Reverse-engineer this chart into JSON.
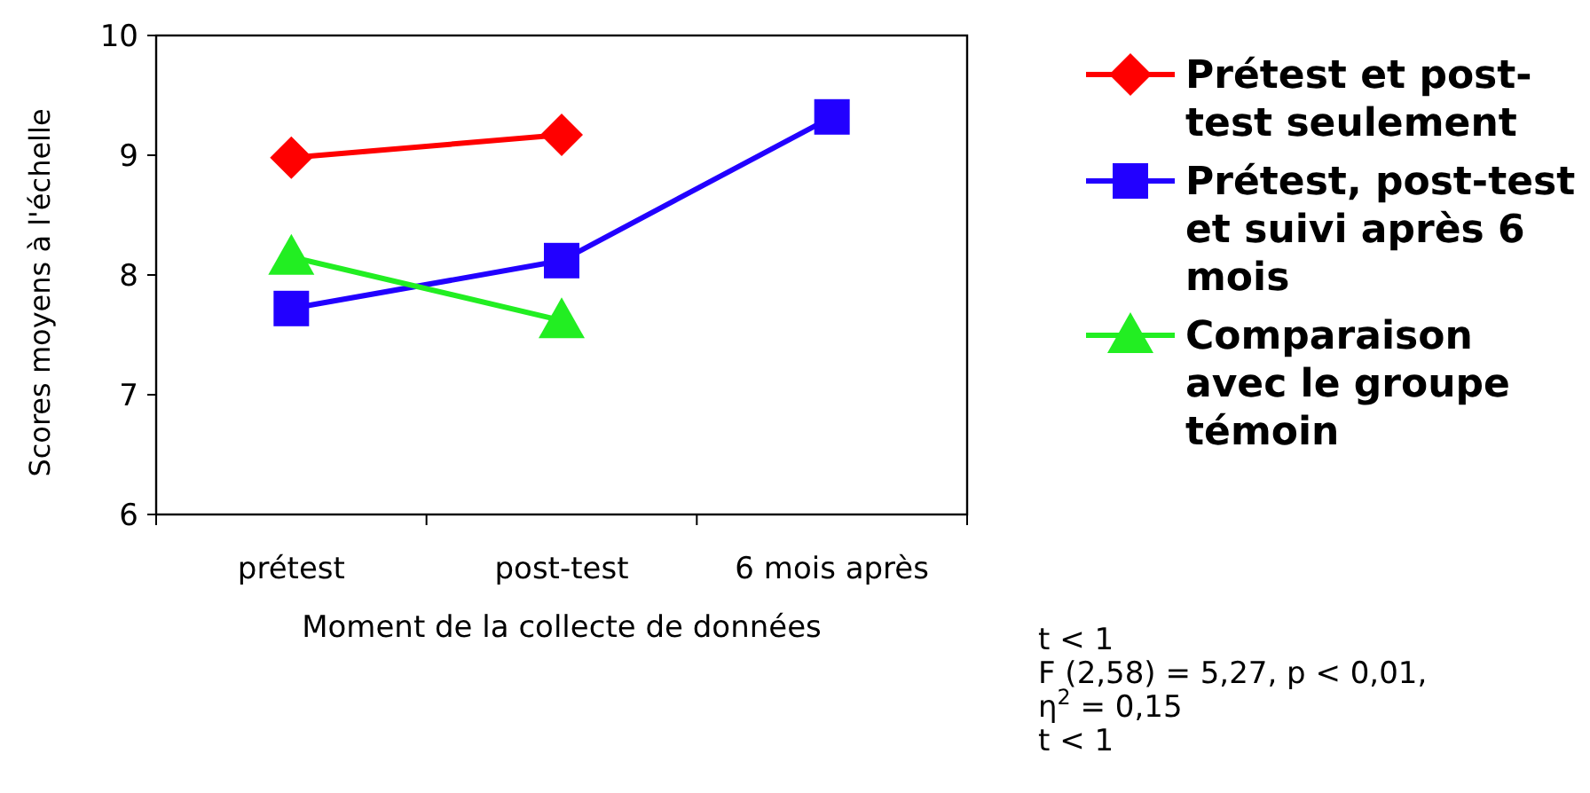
{
  "chart_data": {
    "type": "line",
    "xlabel": "Moment de la collecte de données",
    "ylabel": "Scores moyens à l'échelle",
    "categories": [
      "prétest",
      "post-test",
      "6 mois après"
    ],
    "ylim": [
      6,
      10
    ],
    "yticks": [
      6,
      7,
      8,
      9,
      10
    ],
    "grid": false,
    "legend": "right",
    "line_style": "solid",
    "series": [
      {
        "name": "Prétest et post-test seulement",
        "color": "#ff0000",
        "marker": "diamond",
        "values": [
          8.98,
          9.17,
          null
        ]
      },
      {
        "name": "Prétest, post-test et suivi après 6 mois",
        "color": "#2200ff",
        "marker": "square",
        "values": [
          7.72,
          8.12,
          9.32
        ]
      },
      {
        "name": "Comparaison avec le groupe témoin",
        "color": "#22ee22",
        "marker": "triangle",
        "values": [
          8.15,
          7.62,
          null
        ]
      }
    ],
    "annotations": [
      "t < 1",
      "F (2,58) = 5,27, p < 0,01,",
      "η$^{2}$ = 0,15",
      "t < 1"
    ]
  }
}
